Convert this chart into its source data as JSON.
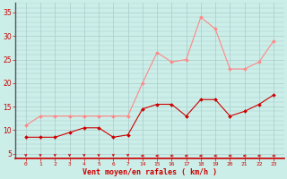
{
  "bg_color": "#cceee8",
  "grid_color": "#aacccc",
  "xlabel": "Vent moyen/en rafales ( km/h )",
  "xlabel_color": "#cc0000",
  "tick_color": "#cc0000",
  "line1_color": "#ff8888",
  "line2_color": "#cc0000",
  "arrow_color": "#cc0000",
  "x_labels": [
    "0",
    "1",
    "2",
    "3",
    "4",
    "5",
    "6",
    "7",
    "14",
    "15",
    "16",
    "17",
    "18",
    "19",
    "20",
    "21",
    "22",
    "23"
  ],
  "n_points": 18,
  "yticks": [
    5,
    10,
    15,
    20,
    25,
    30,
    35
  ],
  "ylim": [
    4.0,
    37.0
  ],
  "rafales_y": [
    11,
    13,
    13,
    13,
    13,
    13,
    13,
    13,
    20,
    26.5,
    24.5,
    25,
    34,
    31.5,
    23,
    23,
    24.5,
    29
  ],
  "moyen_y": [
    8.5,
    8.5,
    8.5,
    9.5,
    10.5,
    10.5,
    8.5,
    9,
    14.5,
    15.5,
    15.5,
    13,
    16.5,
    16.5,
    13,
    14,
    15.5,
    17.5
  ],
  "arrow_down_indices": [
    0,
    1,
    2,
    3,
    4,
    5,
    6,
    7
  ],
  "arrow_left_indices": [
    8,
    9,
    10,
    11,
    12,
    13,
    14,
    15,
    16,
    17
  ]
}
